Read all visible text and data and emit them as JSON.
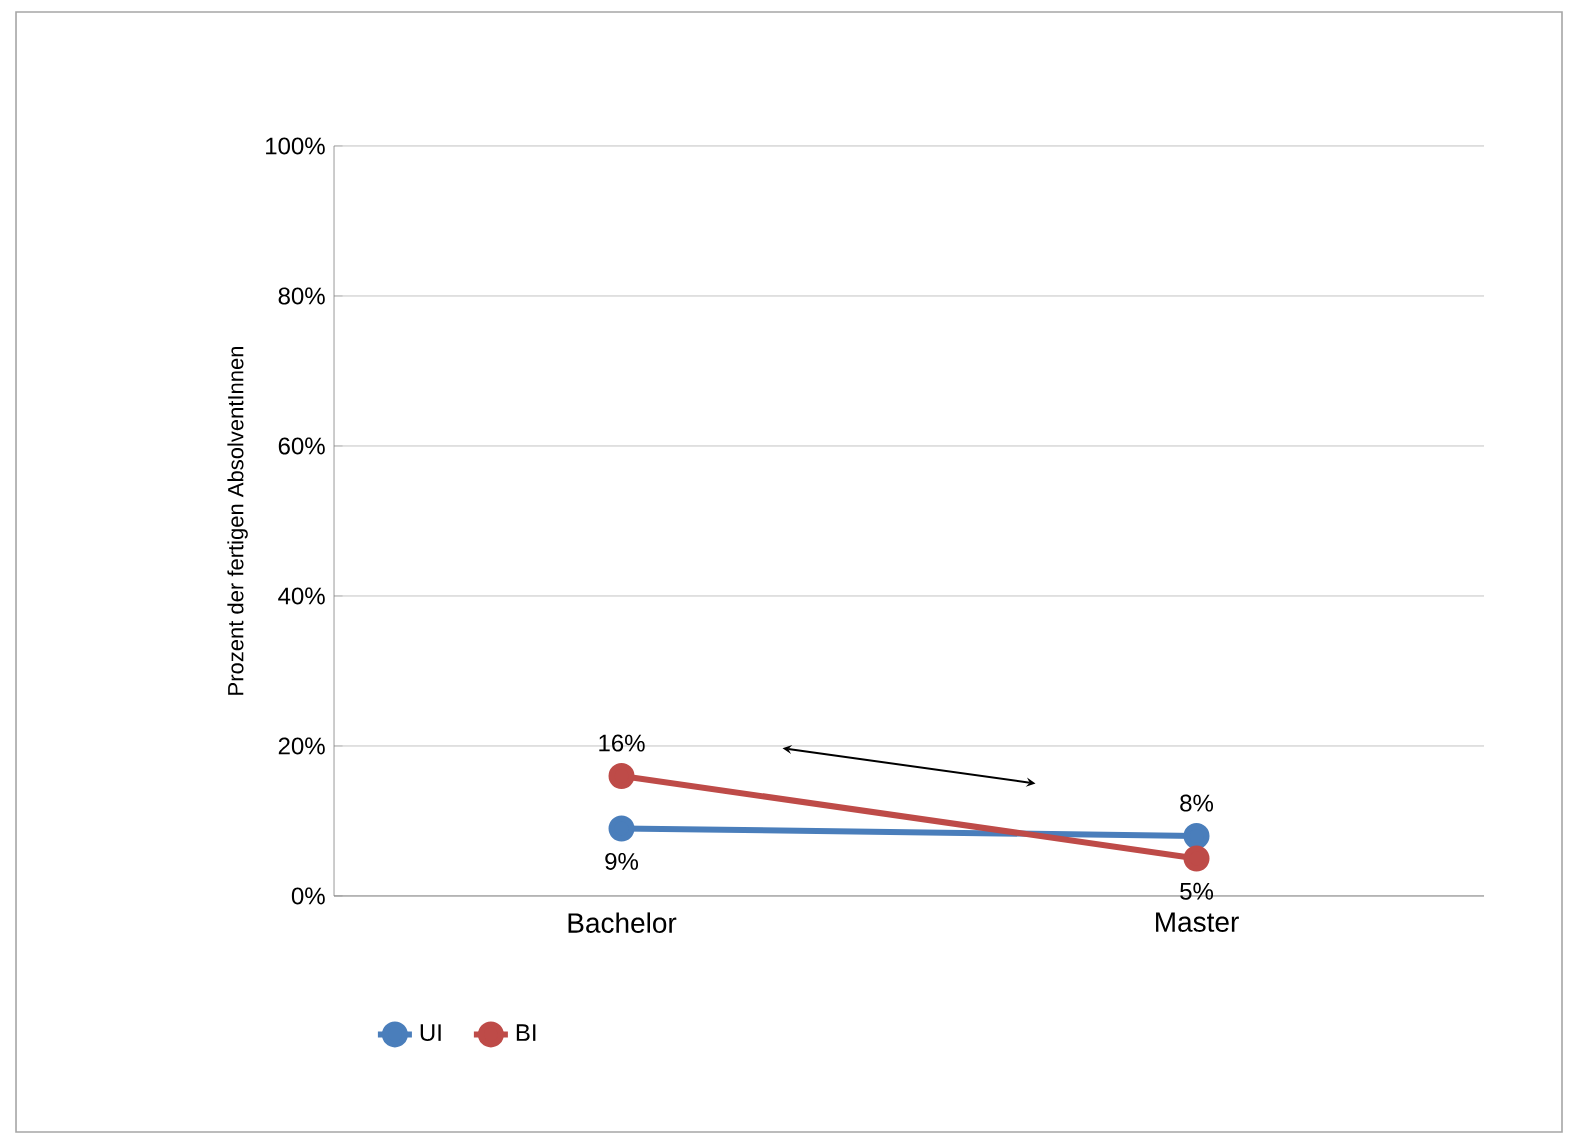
{
  "chart_data": {
    "type": "line",
    "ylabel": "Prozent der fertigen AbsolventInnen",
    "categories": [
      "Bachelor",
      "Master"
    ],
    "series": [
      {
        "name": "UI",
        "color": "#4a7ebb",
        "values": [
          9,
          8
        ],
        "value_labels": [
          "9%",
          "8%"
        ]
      },
      {
        "name": "BI",
        "color": "#be4b48",
        "values": [
          16,
          5
        ],
        "value_labels": [
          "16%",
          "5%"
        ]
      }
    ],
    "ylim": [
      0,
      100
    ],
    "yticks": [
      {
        "value": 0,
        "label": "0%"
      },
      {
        "value": 20,
        "label": "20%"
      },
      {
        "value": 40,
        "label": "40%"
      },
      {
        "value": 60,
        "label": "60%"
      },
      {
        "value": 80,
        "label": "80%"
      },
      {
        "value": 100,
        "label": "100%"
      }
    ],
    "grid": "y",
    "legend": "bottom",
    "marker": "circle",
    "line_style": "solid"
  }
}
